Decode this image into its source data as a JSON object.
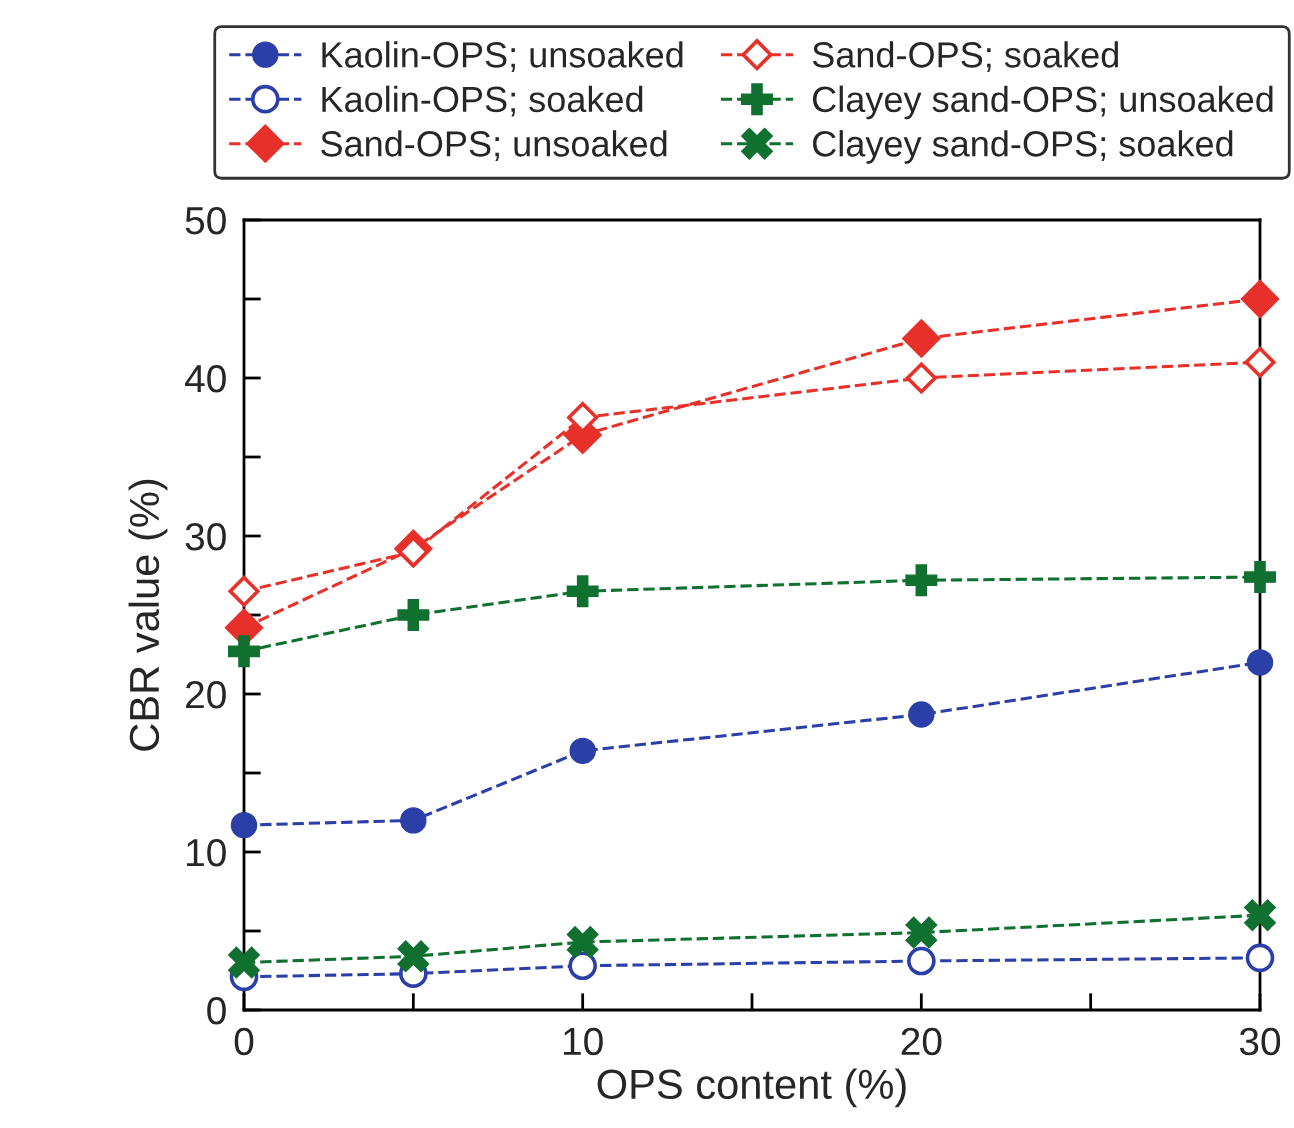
{
  "chart_data": {
    "type": "line",
    "xlabel": "OPS content (%)",
    "ylabel": "CBR value (%)",
    "x": [
      0,
      5,
      10,
      20,
      30
    ],
    "series": [
      {
        "name": "Kaolin-OPS; unsoaked",
        "color": "#2b3fa8",
        "marker": "circle",
        "values": [
          11.7,
          12.0,
          16.4,
          18.7,
          22.0
        ]
      },
      {
        "name": "Kaolin-OPS; soaked",
        "color": "#2b3fa8",
        "marker": "circle-open",
        "values": [
          2.1,
          2.3,
          2.8,
          3.1,
          3.3
        ]
      },
      {
        "name": "Sand-OPS; unsoaked",
        "color": "#e8302a",
        "marker": "diamond",
        "values": [
          24.2,
          29.2,
          36.4,
          42.5,
          45.0
        ]
      },
      {
        "name": "Sand-OPS; soaked",
        "color": "#e8302a",
        "marker": "diamond-open",
        "values": [
          26.5,
          29.0,
          37.5,
          40.0,
          41.0
        ]
      },
      {
        "name": "Clayey sand-OPS; unsoaked",
        "color": "#107030",
        "marker": "plus",
        "values": [
          22.7,
          25.0,
          26.5,
          27.2,
          27.4
        ]
      },
      {
        "name": "Clayey sand-OPS; soaked",
        "color": "#107030",
        "marker": "cross",
        "values": [
          3.0,
          3.4,
          4.3,
          4.9,
          6.0
        ]
      }
    ],
    "xlim": [
      0,
      30
    ],
    "xticks": [
      0,
      {
        "value": 5,
        "label": null
      },
      10,
      {
        "value": 15,
        "label": null
      },
      20,
      {
        "value": 25,
        "label": null
      },
      30
    ],
    "ylim": [
      0,
      50
    ],
    "yticks": [
      0,
      {
        "value": 5,
        "label": null
      },
      10,
      {
        "value": 15,
        "label": null
      },
      20,
      {
        "value": 25,
        "label": null
      },
      30,
      {
        "value": 35,
        "label": null
      },
      40,
      {
        "value": 45,
        "label": null
      },
      50
    ],
    "line_style": "dashed",
    "grid": false,
    "legend": "top"
  }
}
